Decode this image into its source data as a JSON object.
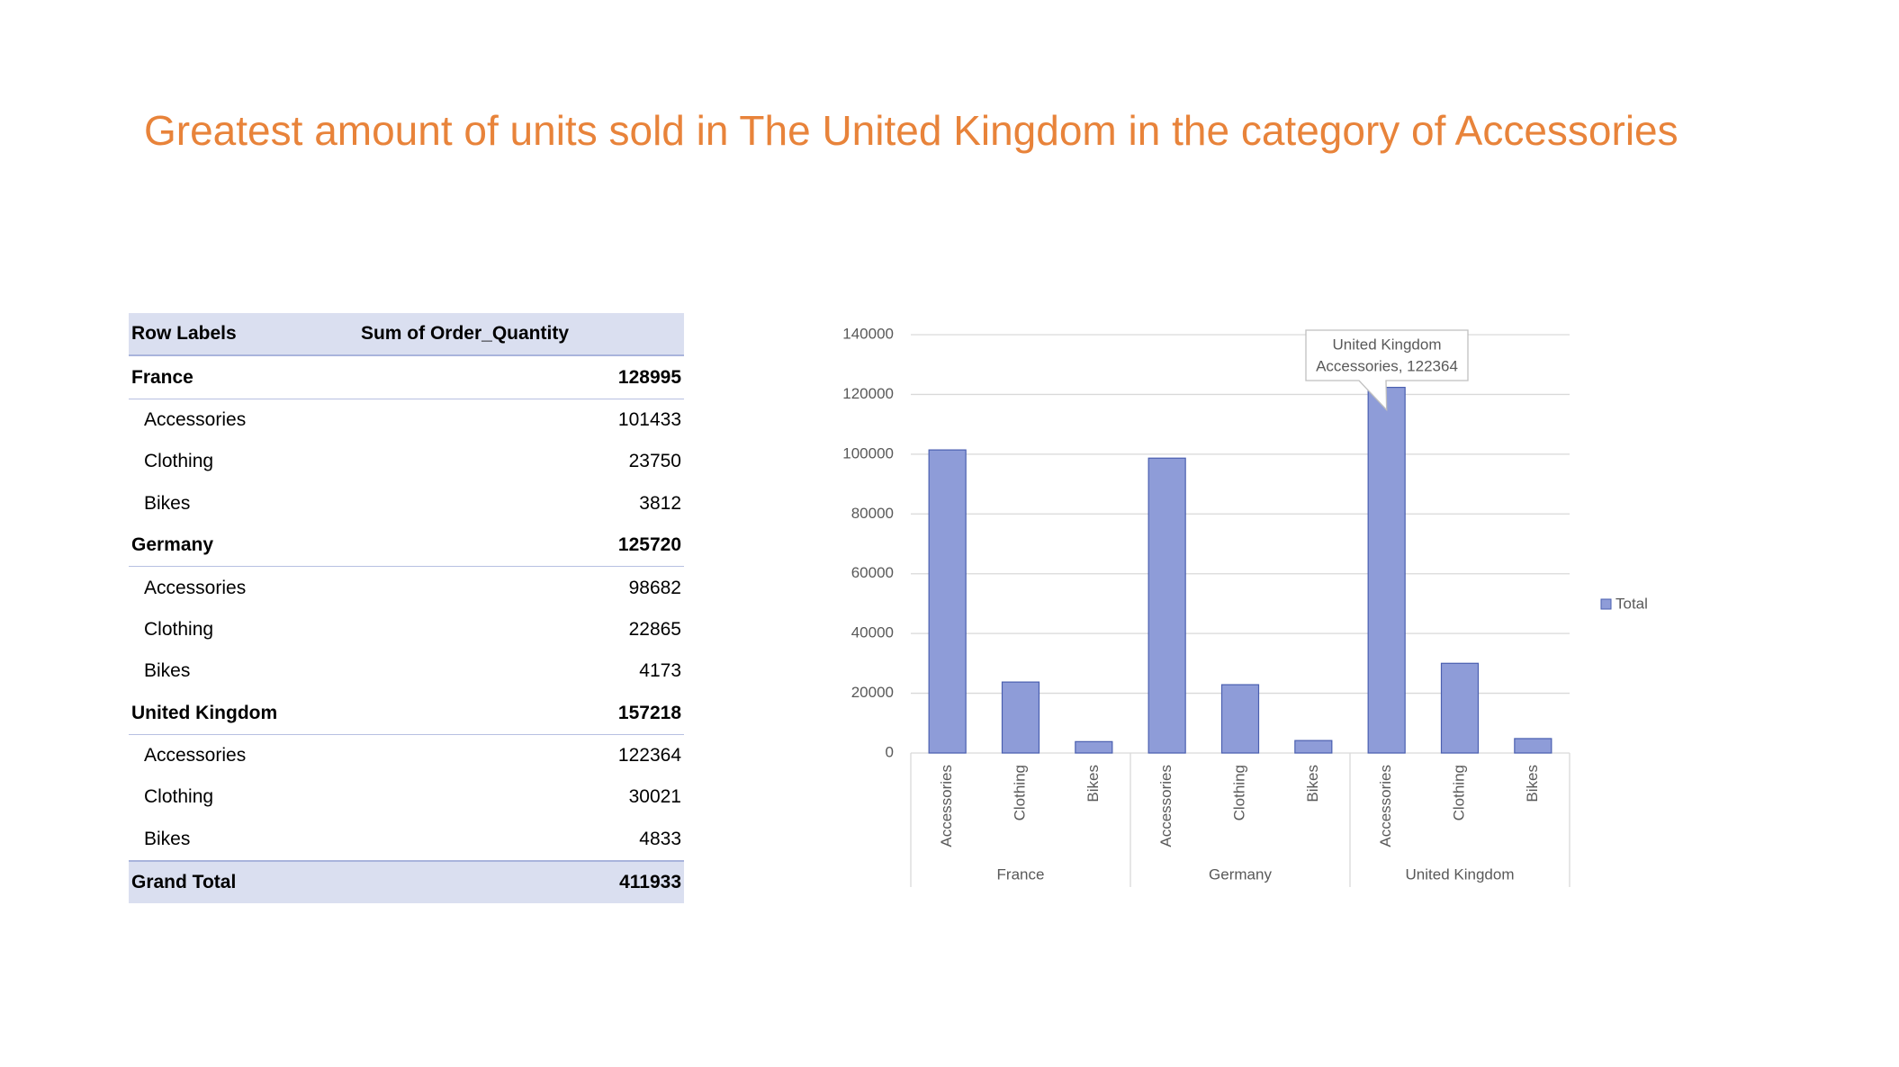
{
  "title": "Greatest amount of units sold in The United Kingdom in the category of Accessories",
  "table": {
    "header": [
      "Row Labels",
      "Sum of Order_Quantity"
    ],
    "groups": [
      {
        "label": "France",
        "value": "128995",
        "items": [
          [
            "Accessories",
            "101433"
          ],
          [
            "Clothing",
            "23750"
          ],
          [
            "Bikes",
            "3812"
          ]
        ]
      },
      {
        "label": "Germany",
        "value": "125720",
        "items": [
          [
            "Accessories",
            "98682"
          ],
          [
            "Clothing",
            "22865"
          ],
          [
            "Bikes",
            "4173"
          ]
        ]
      },
      {
        "label": "United Kingdom",
        "value": "157218",
        "items": [
          [
            "Accessories",
            "122364"
          ],
          [
            "Clothing",
            "30021"
          ],
          [
            "Bikes",
            "4833"
          ]
        ]
      }
    ],
    "total": [
      "Grand Total",
      "411933"
    ]
  },
  "chart_data": {
    "type": "bar",
    "categories": [
      "Accessories",
      "Clothing",
      "Bikes",
      "Accessories",
      "Clothing",
      "Bikes",
      "Accessories",
      "Clothing",
      "Bikes"
    ],
    "groups": [
      "France",
      "Germany",
      "United Kingdom"
    ],
    "series": [
      {
        "name": "Total",
        "color": "#8e9cd8",
        "values": [
          101433,
          23750,
          3812,
          98682,
          22865,
          4173,
          122364,
          30021,
          4833
        ]
      }
    ],
    "ylim": [
      0,
      140000
    ],
    "yticks": [
      0,
      20000,
      40000,
      60000,
      80000,
      100000,
      120000,
      140000
    ],
    "grid": true,
    "legend": "right",
    "annotation": {
      "lines": [
        "United Kingdom",
        "Accessories, 122364"
      ],
      "index": 6
    }
  }
}
